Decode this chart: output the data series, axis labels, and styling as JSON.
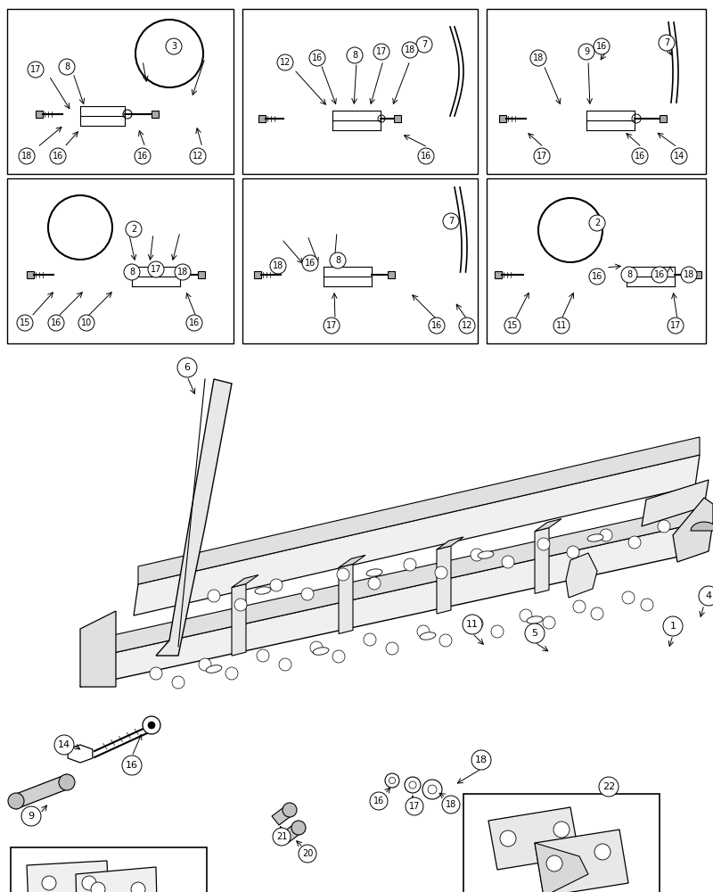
{
  "bg_color": "#ffffff",
  "fig_w": 8.0,
  "fig_h": 10.0,
  "dpi": 100
}
